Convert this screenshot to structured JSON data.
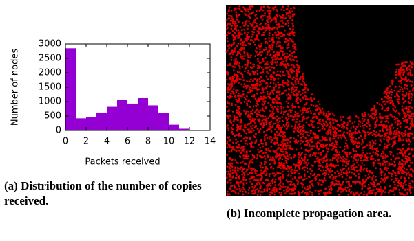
{
  "chart_data": {
    "type": "histogram",
    "ylabel": "Number of nodes",
    "xlabel": "Packets received",
    "bins": [
      0,
      1,
      2,
      3,
      4,
      5,
      6,
      7,
      8,
      9,
      10,
      11,
      12
    ],
    "values": [
      2850,
      420,
      470,
      620,
      820,
      1050,
      930,
      1120,
      870,
      600,
      200,
      60
    ],
    "color": "#9400d3",
    "xlim": [
      0,
      14
    ],
    "xticks": [
      0,
      2,
      4,
      6,
      8,
      10,
      12,
      14
    ],
    "ylim": [
      0,
      3000
    ],
    "yticks": [
      0,
      500,
      1000,
      1500,
      2000,
      2500,
      3000
    ]
  },
  "captions": {
    "a": "(a) Distribution of the number of copies received.",
    "b": "(b) Incomplete propagation area."
  }
}
